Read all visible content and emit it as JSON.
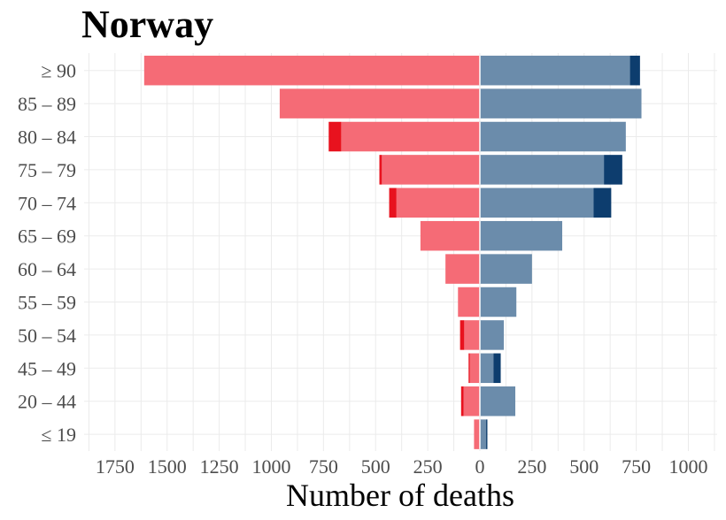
{
  "chart_data": {
    "type": "bar",
    "orientation": "horizontal-population-pyramid",
    "title": "Norway",
    "xlabel": "Number of deaths",
    "ylabel": "",
    "categories": [
      "≥ 90",
      "85 – 89",
      "80 – 84",
      "75 – 79",
      "70 – 74",
      "65 – 69",
      "60 – 64",
      "55 – 59",
      "50 – 54",
      "45 – 49",
      "20 – 44",
      "≤ 19"
    ],
    "x_tick_labels": [
      "1750",
      "1500",
      "1250",
      "1000",
      "750",
      "500",
      "250",
      "0",
      "250",
      "500",
      "750",
      "1000"
    ],
    "x_tick_values": [
      -1750,
      -1500,
      -1250,
      -1000,
      -750,
      -500,
      -250,
      0,
      250,
      500,
      750,
      1000
    ],
    "xlim": [
      -1900,
      1140
    ],
    "grid": true,
    "legend": "none",
    "series": [
      {
        "side": "left",
        "color": "#f56b76",
        "values": [
          1610,
          960,
          665,
          470,
          400,
          285,
          165,
          105,
          75,
          48,
          78,
          28
        ]
      },
      {
        "side": "left",
        "color": "#e8121e",
        "values": [
          0,
          0,
          60,
          12,
          35,
          0,
          0,
          0,
          20,
          6,
          12,
          0
        ]
      },
      {
        "side": "right",
        "color": "#6b8cab",
        "values": [
          720,
          775,
          700,
          595,
          545,
          395,
          250,
          175,
          115,
          65,
          170,
          30
        ]
      },
      {
        "side": "right",
        "color": "#0d3d6e",
        "values": [
          48,
          0,
          0,
          88,
          85,
          0,
          0,
          0,
          0,
          35,
          0,
          6
        ]
      }
    ]
  }
}
